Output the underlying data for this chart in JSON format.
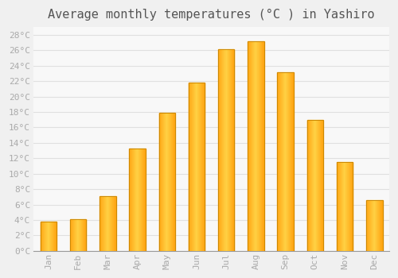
{
  "title": "Average monthly temperatures (°C ) in Yashiro",
  "months": [
    "Jan",
    "Feb",
    "Mar",
    "Apr",
    "May",
    "Jun",
    "Jul",
    "Aug",
    "Sep",
    "Oct",
    "Nov",
    "Dec"
  ],
  "temperatures": [
    3.8,
    4.1,
    7.1,
    13.3,
    17.9,
    21.8,
    26.1,
    27.2,
    23.2,
    17.0,
    11.5,
    6.6
  ],
  "bar_color_center": "#FFD060",
  "bar_color_edge": "#FFA020",
  "bar_edge_color": "#CC8800",
  "background_color": "#f0f0f0",
  "plot_bg_color": "#f8f8f8",
  "grid_color": "#e0e0e0",
  "ylim": [
    0,
    29
  ],
  "yticks": [
    0,
    2,
    4,
    6,
    8,
    10,
    12,
    14,
    16,
    18,
    20,
    22,
    24,
    26,
    28
  ],
  "title_fontsize": 11,
  "tick_fontsize": 8,
  "tick_color": "#aaaaaa",
  "bar_width": 0.55
}
